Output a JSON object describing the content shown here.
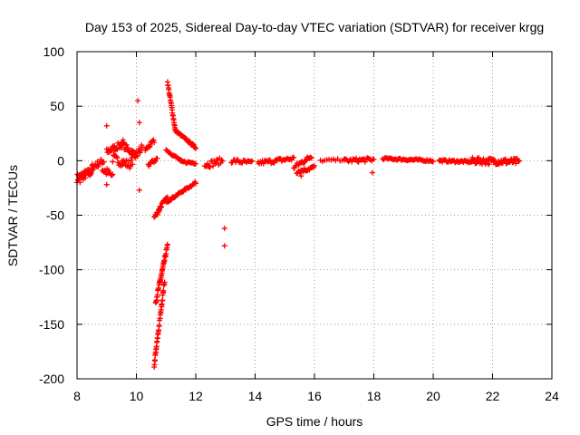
{
  "chart_data": {
    "type": "scatter",
    "title": "Day 153 of 2025, Sidereal Day-to-day VTEC variation (SDTVAR) for receiver krgg",
    "xlabel": "GPS time / hours",
    "ylabel": "SDTVAR / TECUs",
    "xlim": [
      8,
      24
    ],
    "ylim": [
      -200,
      100
    ],
    "xticks": [
      8,
      10,
      12,
      14,
      16,
      18,
      20,
      22,
      24
    ],
    "yticks": [
      -200,
      -150,
      -100,
      -50,
      0,
      50,
      100
    ],
    "x_tick_labels": [
      "8",
      "10",
      "12",
      "14",
      "16",
      "18",
      "20",
      "22",
      "24"
    ],
    "y_tick_labels": [
      "-200",
      "-150",
      "-100",
      "-50",
      "0",
      "50",
      "100"
    ],
    "grid": true,
    "marker": "+",
    "marker_color": "#ff0000",
    "series": [
      {
        "name": "krgg",
        "segments": [
          {
            "x": [
              8.0,
              8.5
            ],
            "y": [
              -16,
              -10
            ],
            "n": 40,
            "jitter": 4
          },
          {
            "x": [
              8.5,
              8.9
            ],
            "y": [
              -6,
              0
            ],
            "n": 18,
            "jitter": 3
          },
          {
            "x": [
              8.85,
              9.2
            ],
            "y": [
              -8,
              -14
            ],
            "n": 14,
            "jitter": 4
          },
          {
            "x": [
              9.0,
              9.5
            ],
            "y": [
              8,
              15
            ],
            "n": 22,
            "jitter": 3
          },
          {
            "x": [
              9.2,
              9.8
            ],
            "y": [
              2,
              -4
            ],
            "n": 24,
            "jitter": 4
          },
          {
            "x": [
              9.5,
              10.0
            ],
            "y": [
              15,
              5
            ],
            "n": 22,
            "jitter": 3
          },
          {
            "x": [
              9.8,
              10.2
            ],
            "y": [
              -2,
              12
            ],
            "n": 18,
            "jitter": 4
          },
          {
            "x": [
              10.3,
              10.6
            ],
            "y": [
              10,
              18
            ],
            "n": 14,
            "jitter": 2
          },
          {
            "x": [
              10.4,
              10.7
            ],
            "y": [
              -4,
              2
            ],
            "n": 12,
            "jitter": 2
          },
          {
            "x": [
              10.6,
              10.8
            ],
            "y": [
              -52,
              -44
            ],
            "n": 10,
            "jitter": 2
          },
          {
            "x": [
              10.75,
              11.05
            ],
            "y": [
              -44,
              -34
            ],
            "n": 14,
            "jitter": 2
          },
          {
            "x": [
              11.0,
              12.0
            ],
            "y": [
              -38,
              -20
            ],
            "n": 40,
            "jitter": 1
          },
          {
            "x": [
              10.65,
              11.05
            ],
            "y": [
              -130,
              -78
            ],
            "n": 40,
            "jitter": 2
          },
          {
            "x": [
              10.6,
              10.95
            ],
            "y": [
              -188,
              -110
            ],
            "n": 40,
            "jitter": 2
          },
          {
            "x": [
              11.05,
              11.3
            ],
            "y": [
              72,
              30
            ],
            "n": 24,
            "jitter": 1
          },
          {
            "x": [
              11.3,
              12.0
            ],
            "y": [
              28,
              12
            ],
            "n": 34,
            "jitter": 1
          },
          {
            "x": [
              11.0,
              11.5
            ],
            "y": [
              10,
              0
            ],
            "n": 18,
            "jitter": 1
          },
          {
            "x": [
              11.5,
              12.0
            ],
            "y": [
              -1,
              -2
            ],
            "n": 16,
            "jitter": 1
          },
          {
            "x": [
              12.3,
              12.9
            ],
            "y": [
              -4,
              0
            ],
            "n": 20,
            "jitter": 3
          },
          {
            "x": [
              13.2,
              13.9
            ],
            "y": [
              0,
              -2
            ],
            "n": 20,
            "jitter": 2
          },
          {
            "x": [
              14.1,
              15.3
            ],
            "y": [
              -2,
              2
            ],
            "n": 34,
            "jitter": 2
          },
          {
            "x": [
              15.3,
              15.9
            ],
            "y": [
              -6,
              4
            ],
            "n": 22,
            "jitter": 2
          },
          {
            "x": [
              15.4,
              16.0
            ],
            "y": [
              -10,
              -6
            ],
            "n": 22,
            "jitter": 2
          },
          {
            "x": [
              16.2,
              17.0
            ],
            "y": [
              0,
              1
            ],
            "n": 12,
            "jitter": 1
          },
          {
            "x": [
              17.0,
              18.0
            ],
            "y": [
              0,
              1
            ],
            "n": 28,
            "jitter": 2
          },
          {
            "x": [
              18.3,
              20.0
            ],
            "y": [
              2,
              0
            ],
            "n": 50,
            "jitter": 1
          },
          {
            "x": [
              20.2,
              21.3
            ],
            "y": [
              0,
              -1
            ],
            "n": 40,
            "jitter": 1
          },
          {
            "x": [
              21.3,
              22.9
            ],
            "y": [
              0,
              -1
            ],
            "n": 70,
            "jitter": 3
          }
        ],
        "points": [
          {
            "x": 9.0,
            "y": 32
          },
          {
            "x": 9.0,
            "y": -22
          },
          {
            "x": 10.05,
            "y": 55
          },
          {
            "x": 10.1,
            "y": 35
          },
          {
            "x": 10.1,
            "y": -27
          },
          {
            "x": 12.97,
            "y": -62
          },
          {
            "x": 12.97,
            "y": -78
          },
          {
            "x": 17.95,
            "y": -11
          },
          {
            "x": 15.55,
            "y": -14
          },
          {
            "x": 8.1,
            "y": -20
          },
          {
            "x": 9.55,
            "y": 19
          }
        ]
      }
    ]
  }
}
